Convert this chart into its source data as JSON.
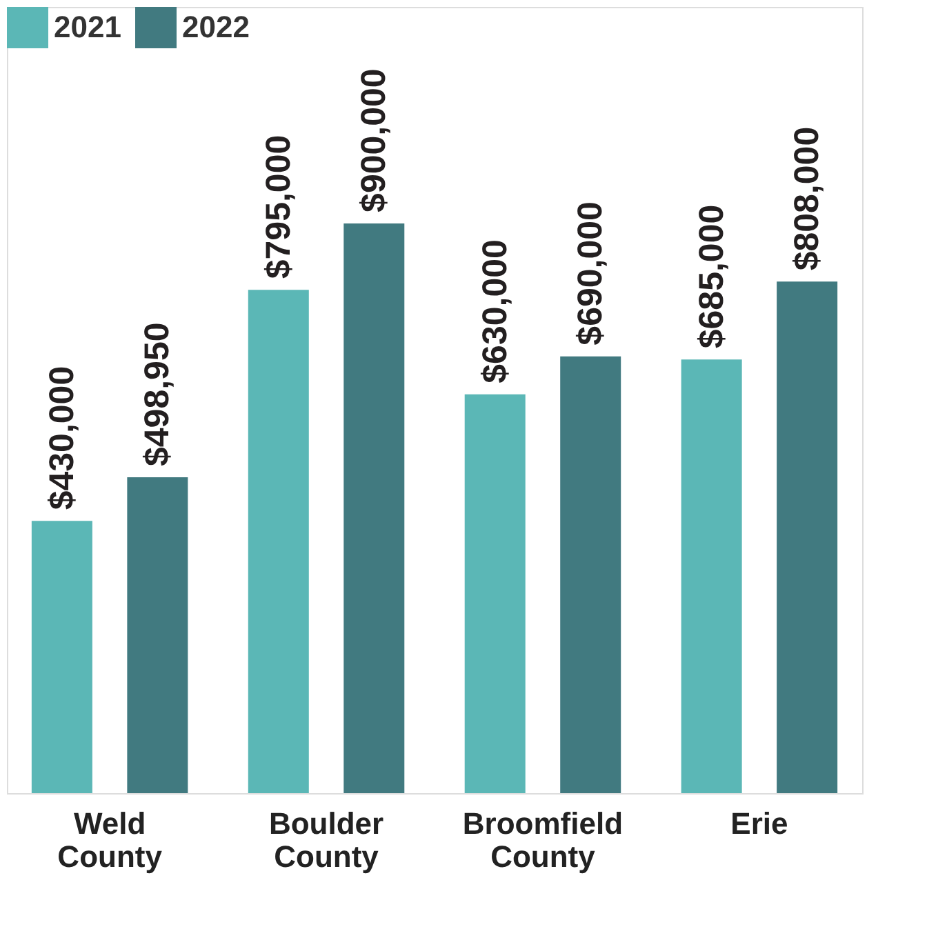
{
  "chart_data": {
    "type": "bar",
    "categories": [
      "Weld County",
      "Boulder County",
      "Broomfield County",
      "Erie"
    ],
    "series": [
      {
        "name": "2021",
        "color": "#5bb7b6",
        "values": [
          430000,
          795000,
          630000,
          685000
        ],
        "value_labels": [
          "$430,000",
          "$795,000",
          "$630,000",
          "$685,000"
        ]
      },
      {
        "name": "2022",
        "color": "#417a80",
        "values": [
          498950,
          900000,
          690000,
          808000
        ],
        "value_labels": [
          "$498,950",
          "$900,000",
          "$690,000",
          "$808,000"
        ]
      }
    ],
    "legend": "top left",
    "tick_labels": "x",
    "grid": false
  }
}
